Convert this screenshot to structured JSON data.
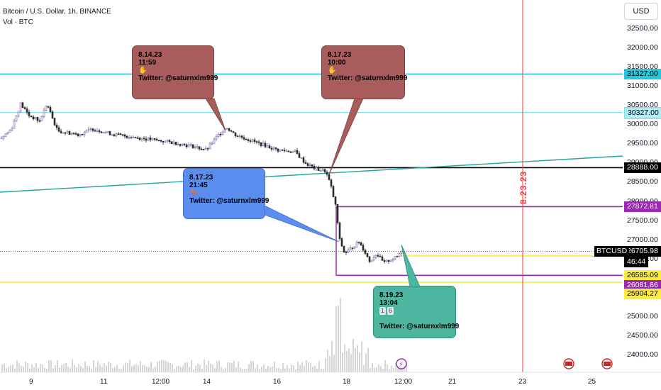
{
  "header": {
    "symbol_title": "Bitcoin / U.S. Dollar, 1h, BINANCE",
    "volume_label": "Vol · BTC",
    "currency_button": "USD"
  },
  "colors": {
    "cyan_line": "#26c6da",
    "light_cyan_line": "#80deea",
    "black_line": "#000000",
    "purple_line": "#9c27b0",
    "yellow_line": "#ffeb3b",
    "trend_line": "#26a69a",
    "red_vertical": "#f23645",
    "callout_red": "#a85c5c",
    "callout_blue": "#5b8def",
    "callout_teal": "#4db6a1"
  },
  "price_axis": {
    "ticks": [
      "32500.00",
      "32000.00",
      "31500.00",
      "31000.00",
      "30500.00",
      "30000.00",
      "29500.00",
      "29000.00",
      "28500.00",
      "28000.00",
      "27500.00",
      "27000.00",
      "26500.00",
      "26000.00",
      "25500.00",
      "25000.00",
      "24500.00",
      "24000.00"
    ]
  },
  "price_tags": [
    {
      "text": "31327.00",
      "color": "#26c6da",
      "text_color": "#000000"
    },
    {
      "text": "30327.00",
      "color": "#b2ebf2",
      "text_color": "#000000"
    },
    {
      "text": "28888.00",
      "color": "#000000",
      "text_color": "#ffffff"
    },
    {
      "text": "27872.81",
      "color": "#9c27b0",
      "text_color": "#ffffff"
    },
    {
      "text": "26705.98",
      "color": "#000000",
      "text_color": "#ffffff"
    },
    {
      "text": "46:44",
      "color": "#000000",
      "text_color": "#ffffff"
    },
    {
      "text": "26585.09",
      "color": "#ffeb3b",
      "text_color": "#000000"
    },
    {
      "text": "26081.86",
      "color": "#9c27b0",
      "text_color": "#ffffff"
    },
    {
      "text": "25904.27",
      "color": "#ffeb3b",
      "text_color": "#000000"
    }
  ],
  "symbol_tag": "BTCUSD",
  "time_axis": {
    "labels": [
      "9",
      "11",
      "12:00",
      "14",
      "16",
      "18",
      "12:00",
      "21",
      "23",
      "25"
    ]
  },
  "vertical_date_label": "8.23.23",
  "callouts": [
    {
      "id": "c1",
      "date": "8.14.23",
      "time": "11:59",
      "twitter": "Twitter: @saturnxlm999"
    },
    {
      "id": "c2",
      "date": "8.17.23",
      "time": "10:00",
      "twitter": "Twitter: @saturnxlm999"
    },
    {
      "id": "c3",
      "date": "8.17.23",
      "time": "21:45",
      "twitter": "Twitter: @saturnxlm999"
    },
    {
      "id": "c4",
      "date": "8.19.23",
      "time": "13:04",
      "extra": "1 6",
      "twitter": "Twitter: @saturnxlm999"
    }
  ],
  "chart_data": {
    "type": "candlestick",
    "title": "Bitcoin / U.S. Dollar, 1h, BINANCE",
    "ylim": [
      23700,
      33100
    ],
    "x_ticks": [
      "9",
      "11",
      "12:00",
      "14",
      "16",
      "18",
      "12:00",
      "21",
      "23",
      "25"
    ],
    "y_ticks": [
      24000,
      24500,
      25000,
      25500,
      26000,
      26500,
      27000,
      27500,
      28000,
      28500,
      29000,
      29500,
      30000,
      30500,
      31000,
      31500,
      32000,
      32500
    ],
    "approx_close_path": [
      {
        "x": "8",
        "y": 29650
      },
      {
        "x": "9",
        "y": 30450
      },
      {
        "x": "10",
        "y": 29900
      },
      {
        "x": "11",
        "y": 29800
      },
      {
        "x": "12:00",
        "y": 29700
      },
      {
        "x": "14",
        "y": 29450
      },
      {
        "x": "14 (peak)",
        "y": 29950
      },
      {
        "x": "16",
        "y": 29250
      },
      {
        "x": "17",
        "y": 28750
      },
      {
        "x": "17 (drop)",
        "y": 26800
      },
      {
        "x": "18",
        "y": 26600
      },
      {
        "x": "19",
        "y": 26400
      },
      {
        "x": "12:00 (last)",
        "y": 26705.98
      }
    ],
    "horizontal_levels": [
      31327.0,
      30327.0,
      28888.0,
      27872.81,
      26585.09,
      26081.86,
      25904.27
    ],
    "last_price": 26705.98,
    "countdown": "46:44",
    "vertical_marker": "8.23.23"
  }
}
